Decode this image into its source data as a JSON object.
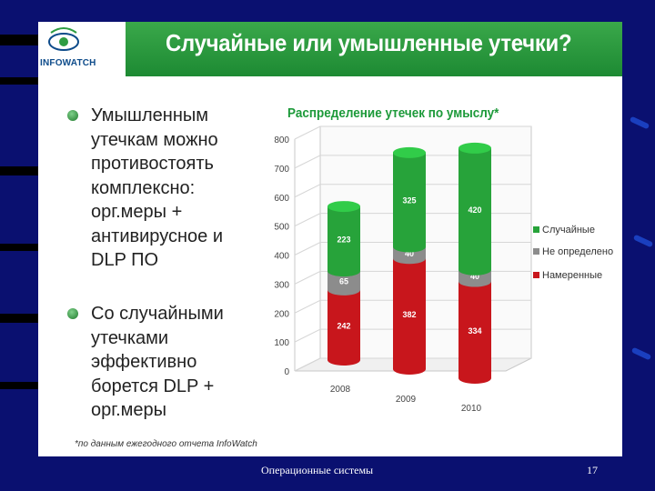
{
  "slide": {
    "title": "Случайные или умышленные утечки?",
    "logo_text": "INFOWATCH",
    "bullets": [
      "Умышленным\nутечкам можно\nпротивостоять\nкомплексно:\nорг.меры +\nантивирусное и\nDLP ПО",
      "Со случайными\nутечками\nэффективно\nборется DLP +\nорг.меры"
    ],
    "footnote": "*по данным ежегодного отчета InfoWatch"
  },
  "footer": {
    "left": "Операционные системы",
    "page_number": "17"
  },
  "chart_data": {
    "type": "bar",
    "stacked": true,
    "title": "Распределение утечек по умыслу*",
    "categories": [
      "2008",
      "2009",
      "2010"
    ],
    "series": [
      {
        "name": "Намеренные",
        "values": [
          242,
          382,
          334
        ],
        "color": "#c8161c"
      },
      {
        "name": "Не определено",
        "values": [
          65,
          40,
          40
        ],
        "color": "#8c8c8c"
      },
      {
        "name": "Случайные",
        "values": [
          223,
          325,
          420
        ],
        "color": "#27a33a"
      }
    ],
    "legend_order": [
      "Случайные",
      "Не определено",
      "Намеренные"
    ],
    "yticks": [
      0,
      100,
      200,
      300,
      400,
      500,
      600,
      700,
      800
    ],
    "ylim": [
      0,
      800
    ],
    "grid": true,
    "legend_position": "right"
  },
  "colors": {
    "background": "#0a1070",
    "header": "#2e9c42",
    "accent": "#1d9a3a"
  }
}
